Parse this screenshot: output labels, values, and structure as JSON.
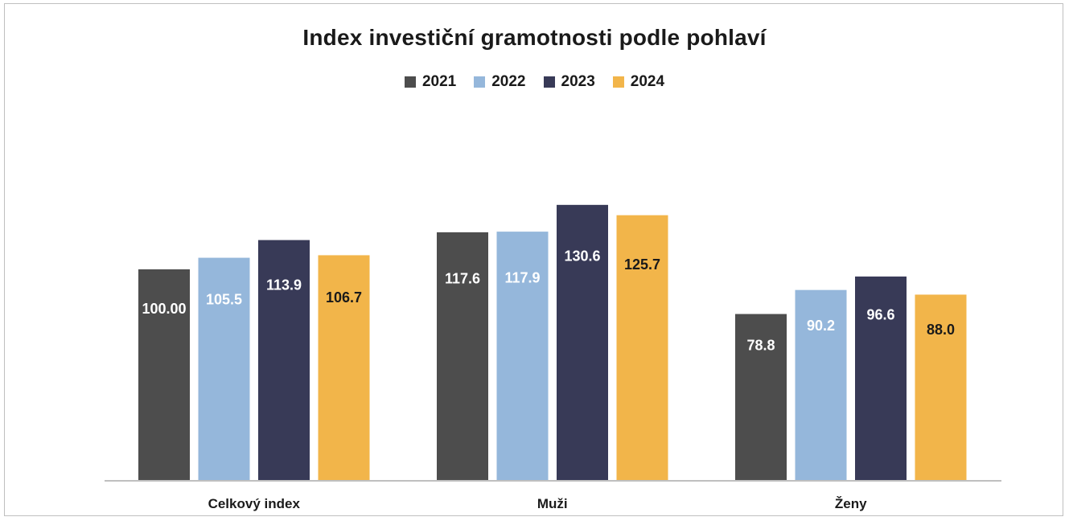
{
  "chart_data": {
    "type": "bar",
    "title": "Index investiční gramotnosti podle pohlaví",
    "categories": [
      "Celkový index",
      "Muži",
      "Ženy"
    ],
    "series": [
      {
        "name": "2021",
        "values": [
          100.0,
          117.6,
          78.8
        ],
        "labels": [
          "100.00",
          "117.6",
          "78.8"
        ],
        "color": "#4d4d4d",
        "label_color": "#ffffff"
      },
      {
        "name": "2022",
        "values": [
          105.5,
          117.9,
          90.2
        ],
        "labels": [
          "105.5",
          "117.9",
          "90.2"
        ],
        "color": "#95b7db",
        "label_color": "#ffffff"
      },
      {
        "name": "2023",
        "values": [
          113.9,
          130.6,
          96.6
        ],
        "labels": [
          "113.9",
          "130.6",
          "96.6"
        ],
        "color": "#383a57",
        "label_color": "#ffffff"
      },
      {
        "name": "2024",
        "values": [
          106.7,
          125.7,
          88.0
        ],
        "labels": [
          "106.7",
          "125.7",
          "88.0"
        ],
        "color": "#f2b54a",
        "label_color": "#1a1a1a"
      }
    ],
    "xlabel": "",
    "ylabel": "",
    "ylim": [
      0,
      160
    ],
    "grid": false,
    "legend_position": "top"
  }
}
